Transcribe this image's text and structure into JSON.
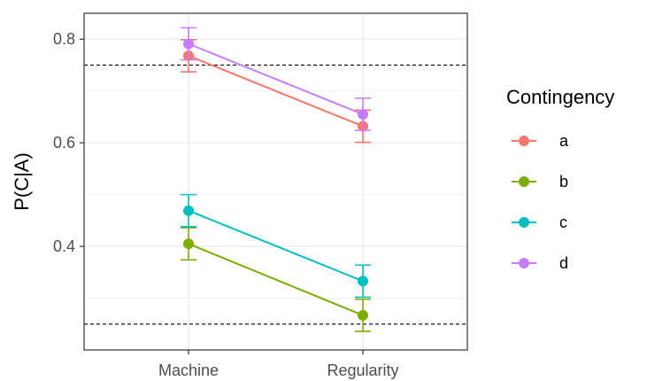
{
  "chart_data": {
    "type": "line",
    "title": "",
    "xlabel": "",
    "ylabel": "P(C|A)",
    "categories": [
      "Machine",
      "Regularity"
    ],
    "ylim": [
      0.2,
      0.85
    ],
    "yticks": [
      0.4,
      0.6,
      0.8
    ],
    "reference_lines": [
      0.75,
      0.25
    ],
    "grid": true,
    "legend": {
      "title": "Contingency",
      "position": "right"
    },
    "series": [
      {
        "name": "a",
        "color": "#F8766D",
        "values": [
          0.768,
          0.632
        ],
        "lower": [
          0.737,
          0.601
        ],
        "upper": [
          0.799,
          0.663
        ]
      },
      {
        "name": "b",
        "color": "#7CAE00",
        "values": [
          0.405,
          0.267
        ],
        "lower": [
          0.374,
          0.236
        ],
        "upper": [
          0.436,
          0.298
        ]
      },
      {
        "name": "c",
        "color": "#00BFC4",
        "values": [
          0.469,
          0.333
        ],
        "lower": [
          0.438,
          0.302
        ],
        "upper": [
          0.5,
          0.364
        ]
      },
      {
        "name": "d",
        "color": "#C77CFF",
        "values": [
          0.791,
          0.655
        ],
        "lower": [
          0.76,
          0.624
        ],
        "upper": [
          0.822,
          0.686
        ]
      }
    ]
  }
}
